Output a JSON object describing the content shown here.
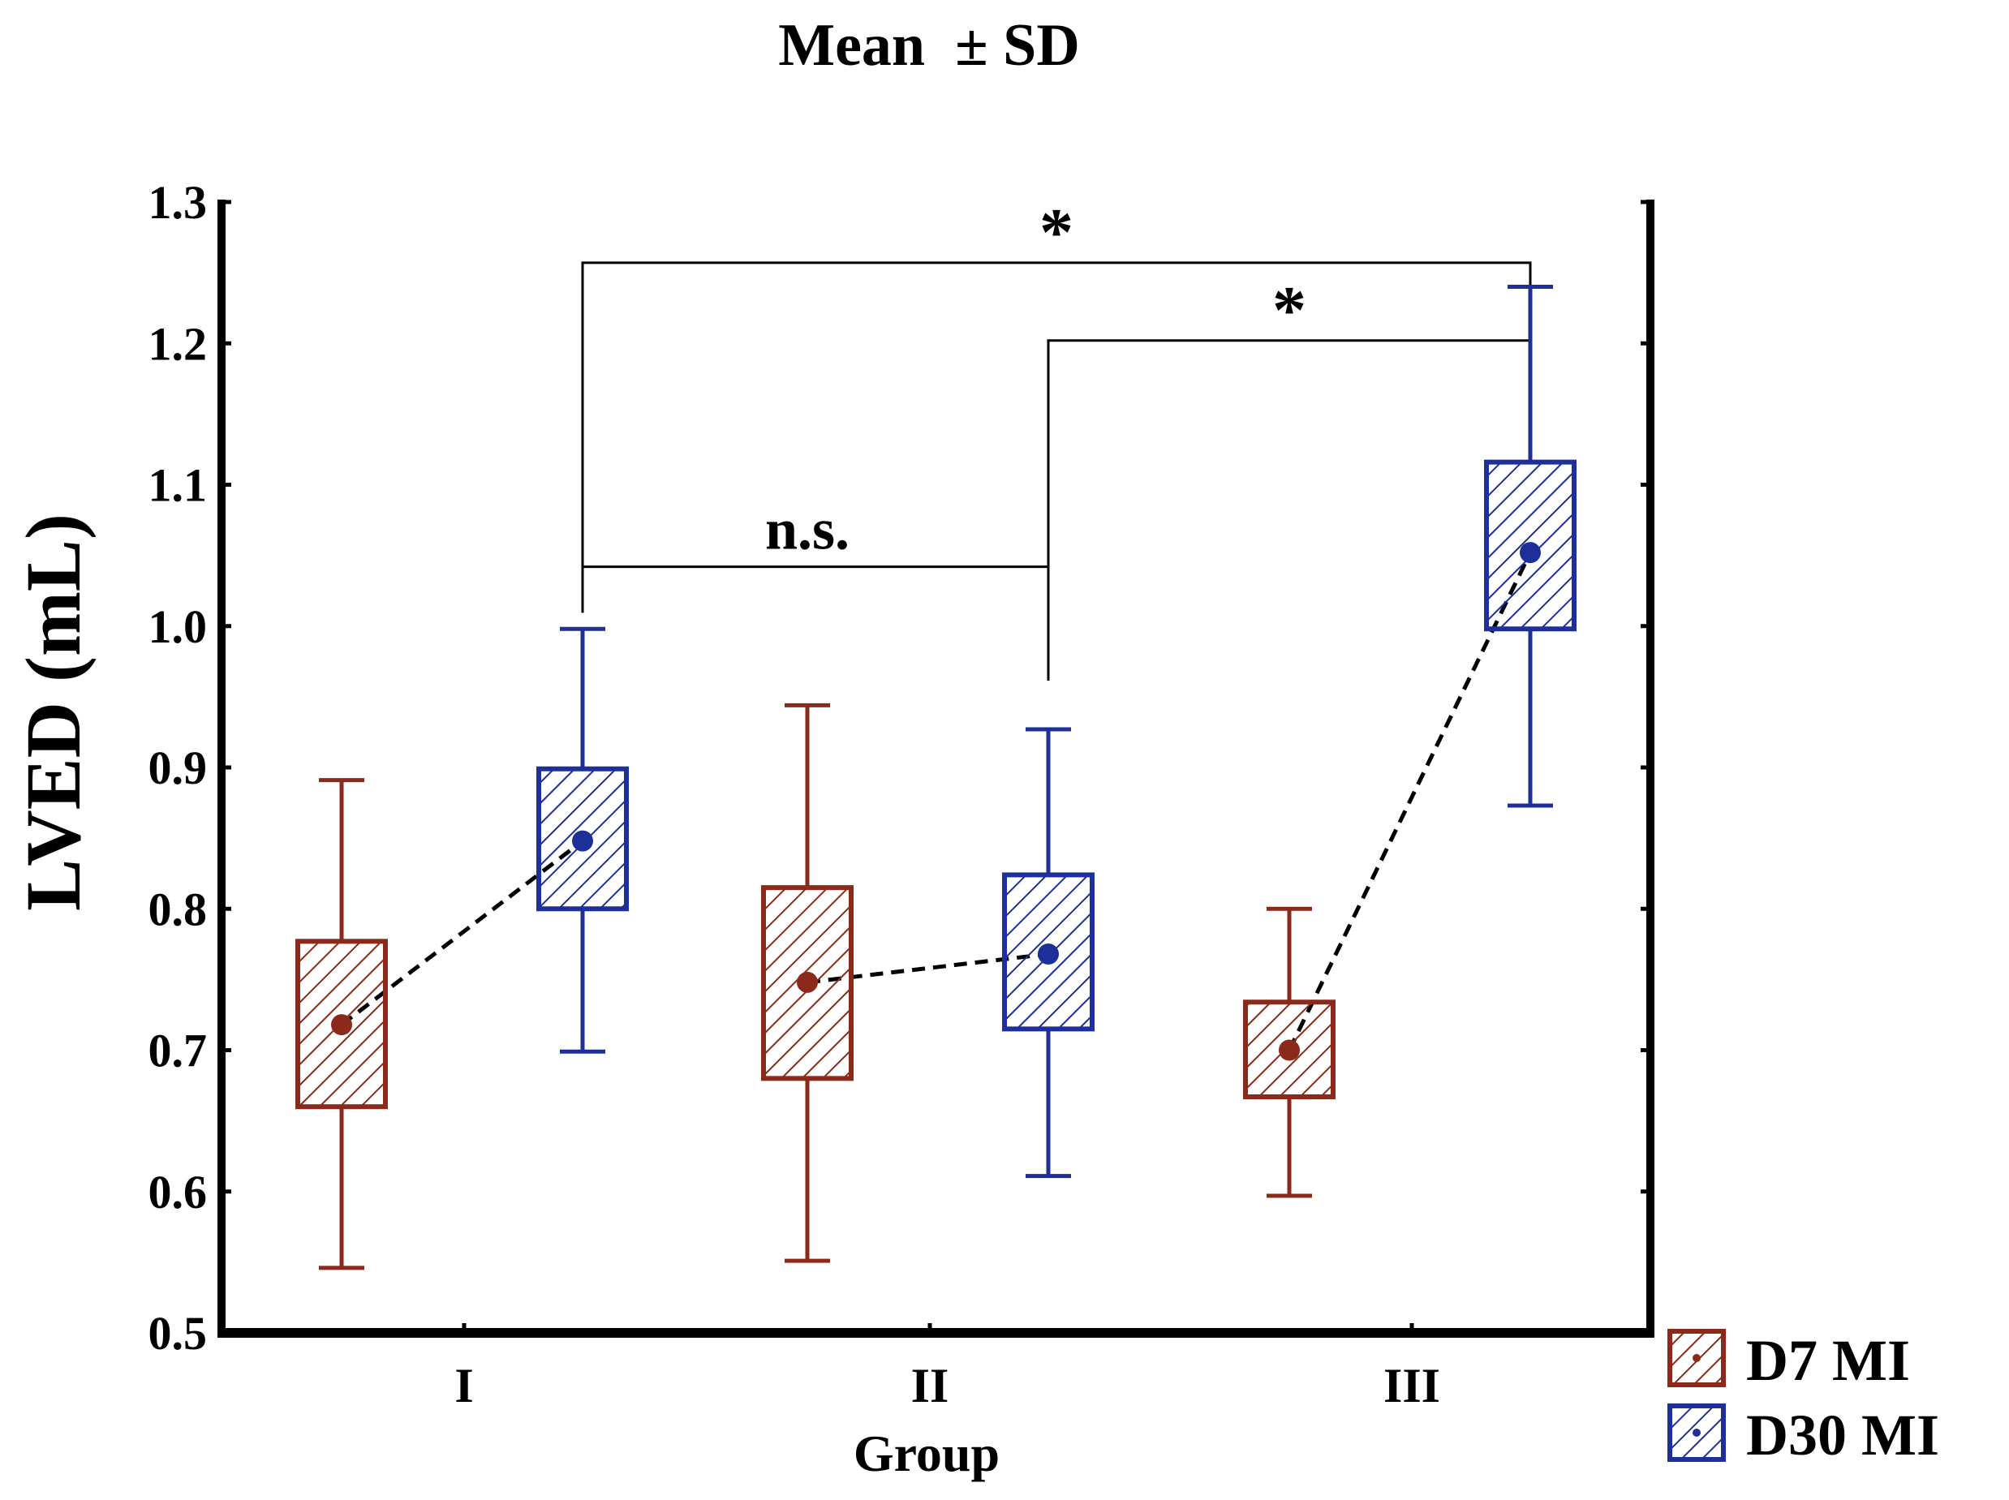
{
  "chart_data": {
    "type": "boxplot",
    "title": "Mean  ± SD",
    "xlabel": "Group",
    "ylabel": "LVED (mL)",
    "ylim": [
      0.5,
      1.3
    ],
    "yticks": [
      0.5,
      0.6,
      0.7,
      0.8,
      0.9,
      1.0,
      1.1,
      1.2,
      1.3
    ],
    "ytick_labels": [
      "0.5",
      "0.6",
      "0.7",
      "0.8",
      "0.9",
      "1.0",
      "1.1",
      "1.2",
      "1.3"
    ],
    "categories": [
      "I",
      "II",
      "III"
    ],
    "series": [
      {
        "name": "D7 MI",
        "color": "#8B2A1A",
        "groups": [
          {
            "category": "I",
            "mean": 0.718,
            "box_low": 0.66,
            "box_high": 0.777,
            "whisker_low": 0.546,
            "whisker_high": 0.891
          },
          {
            "category": "II",
            "mean": 0.748,
            "box_low": 0.68,
            "box_high": 0.815,
            "whisker_low": 0.551,
            "whisker_high": 0.944
          },
          {
            "category": "III",
            "mean": 0.7,
            "box_low": 0.667,
            "box_high": 0.734,
            "whisker_low": 0.597,
            "whisker_high": 0.8
          }
        ]
      },
      {
        "name": "D30 MI",
        "color": "#1F2F9A",
        "groups": [
          {
            "category": "I",
            "mean": 0.848,
            "box_low": 0.8,
            "box_high": 0.899,
            "whisker_low": 0.699,
            "whisker_high": 0.998
          },
          {
            "category": "II",
            "mean": 0.768,
            "box_low": 0.715,
            "box_high": 0.824,
            "whisker_low": 0.611,
            "whisker_high": 0.927
          },
          {
            "category": "III",
            "mean": 1.052,
            "box_low": 0.998,
            "box_high": 1.116,
            "whisker_low": 0.873,
            "whisker_high": 1.24
          }
        ]
      }
    ],
    "significance": [
      {
        "from": "I D30 MI",
        "to": "III D30 MI",
        "label": "*",
        "y": 1.257
      },
      {
        "from": "II D30 MI",
        "to": "III D30 MI",
        "label": "*",
        "y": 1.202
      },
      {
        "from": "I D30 MI",
        "to": "II D30 MI",
        "label": "n.s.",
        "y": 1.042
      }
    ],
    "legend": {
      "position": "bottom-right",
      "entries": [
        "D7 MI",
        "D30 MI"
      ]
    }
  }
}
